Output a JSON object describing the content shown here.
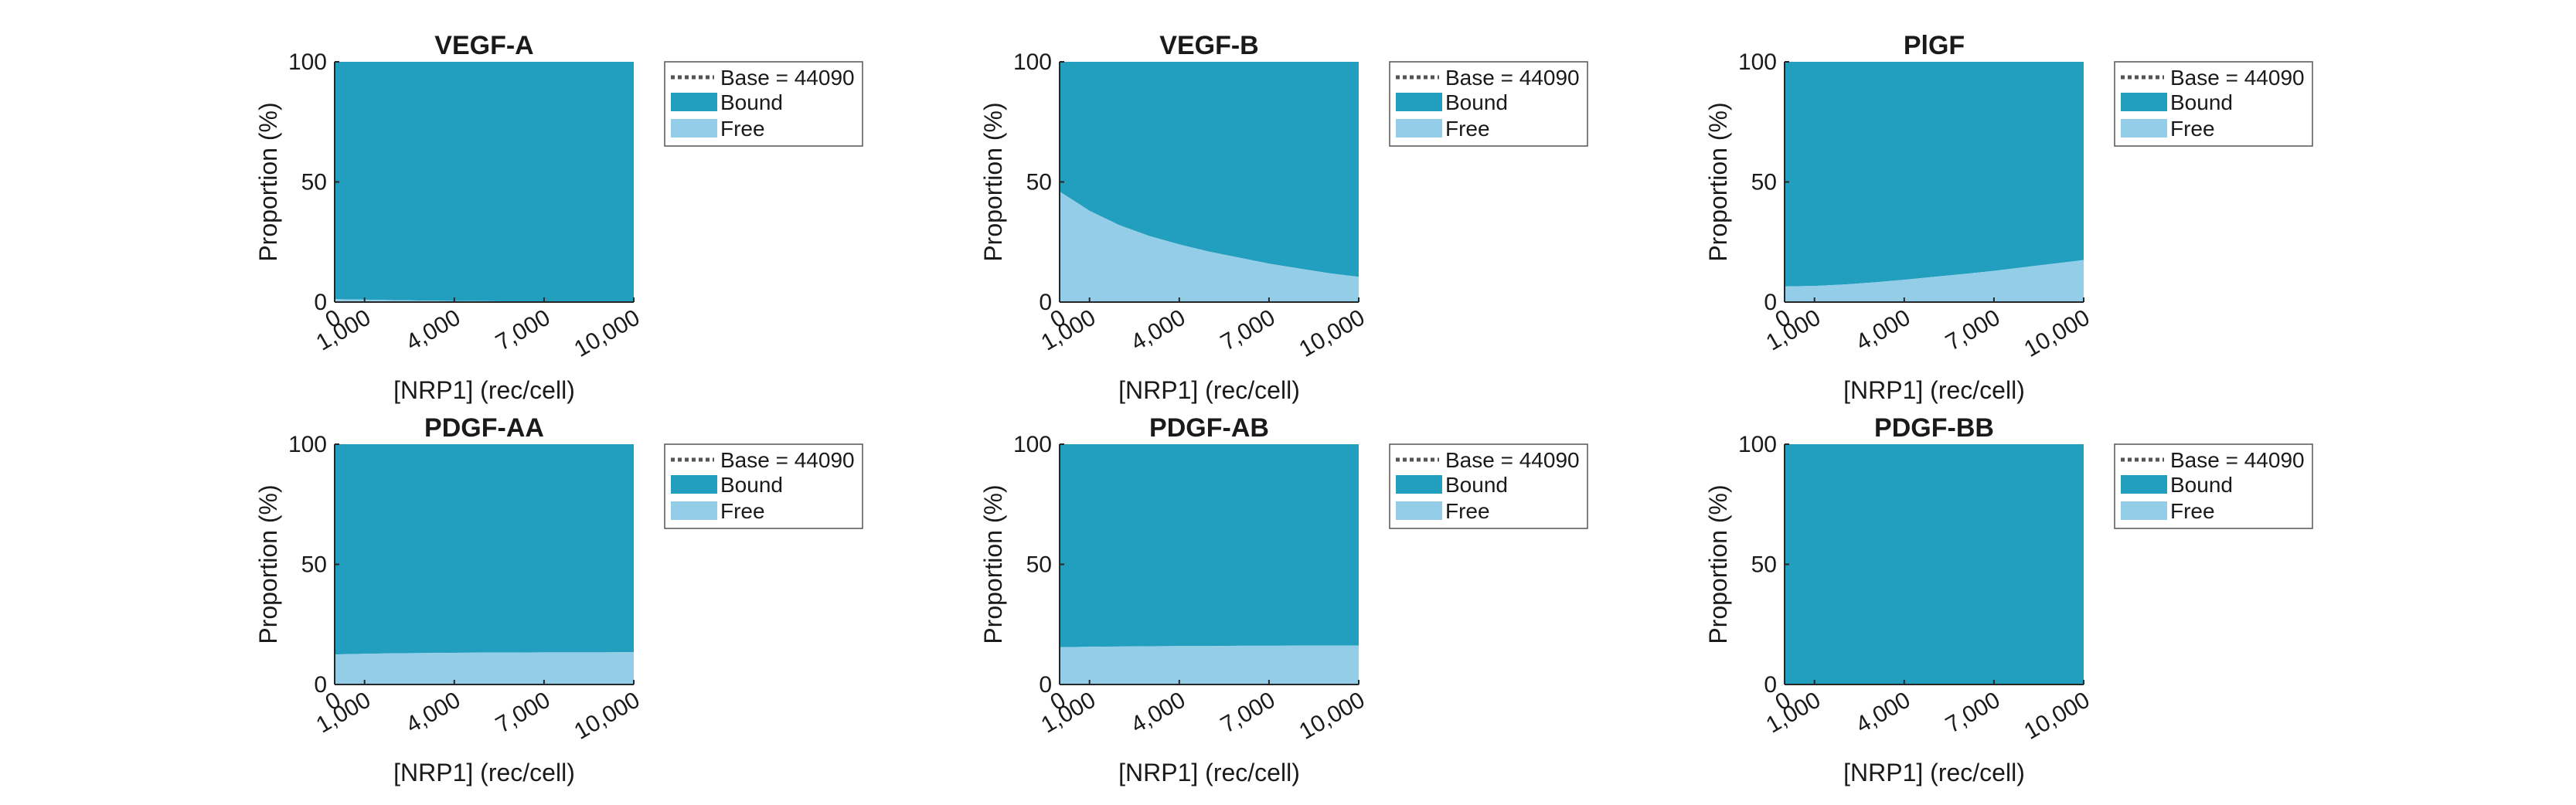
{
  "colors": {
    "bound": "#229fbf",
    "free": "#94cde7",
    "base_line": "#555555",
    "axis": "#262626"
  },
  "chart_data": [
    {
      "type": "area",
      "title": "VEGF-A",
      "xlabel": "[NRP1] (rec/cell)",
      "ylabel": "Proportion (%)",
      "x": [
        0,
        1000,
        2000,
        3000,
        4000,
        5000,
        6000,
        7000,
        8000,
        9000,
        10000
      ],
      "x_ticks": [
        0,
        1000,
        4000,
        7000,
        10000
      ],
      "x_tick_labels": [
        "0",
        "1,000",
        "4,000",
        "7,000",
        "10,000"
      ],
      "y_ticks": [
        0,
        50,
        100
      ],
      "y_tick_labels": [
        "0",
        "50",
        "100"
      ],
      "xlim": [
        0,
        10000
      ],
      "ylim": [
        0,
        100
      ],
      "series": [
        {
          "name": "Free",
          "values": [
            1.2,
            1.0,
            0.8,
            0.6,
            0.5,
            0.4,
            0.3,
            0.3,
            0.2,
            0.2,
            0.2
          ]
        },
        {
          "name": "Bound",
          "values": [
            98.8,
            99.0,
            99.2,
            99.4,
            99.5,
            99.6,
            99.7,
            99.7,
            99.8,
            99.8,
            99.8
          ]
        }
      ],
      "legend": [
        "Base = 44090",
        "Bound",
        "Free"
      ],
      "legend_position": "outside-right"
    },
    {
      "type": "area",
      "title": "VEGF-B",
      "xlabel": "[NRP1] (rec/cell)",
      "ylabel": "Proportion (%)",
      "x": [
        0,
        1000,
        2000,
        3000,
        4000,
        5000,
        6000,
        7000,
        8000,
        9000,
        10000
      ],
      "x_ticks": [
        0,
        1000,
        4000,
        7000,
        10000
      ],
      "x_tick_labels": [
        "0",
        "1,000",
        "4,000",
        "7,000",
        "10,000"
      ],
      "y_ticks": [
        0,
        50,
        100
      ],
      "y_tick_labels": [
        "0",
        "50",
        "100"
      ],
      "xlim": [
        0,
        10000
      ],
      "ylim": [
        0,
        100
      ],
      "series": [
        {
          "name": "Free",
          "values": [
            46,
            38,
            32,
            27.5,
            24,
            21,
            18.5,
            16,
            14,
            12,
            10.5
          ]
        },
        {
          "name": "Bound",
          "values": [
            54,
            62,
            68,
            72.5,
            76,
            79,
            81.5,
            84,
            86,
            88,
            89.5
          ]
        }
      ],
      "legend": [
        "Base = 44090",
        "Bound",
        "Free"
      ],
      "legend_position": "outside-right"
    },
    {
      "type": "area",
      "title": "PlGF",
      "xlabel": "[NRP1] (rec/cell)",
      "ylabel": "Proportion (%)",
      "x": [
        0,
        1000,
        2000,
        3000,
        4000,
        5000,
        6000,
        7000,
        8000,
        9000,
        10000
      ],
      "x_ticks": [
        0,
        1000,
        4000,
        7000,
        10000
      ],
      "x_tick_labels": [
        "0",
        "1,000",
        "4,000",
        "7,000",
        "10,000"
      ],
      "y_ticks": [
        0,
        50,
        100
      ],
      "y_tick_labels": [
        "0",
        "50",
        "100"
      ],
      "xlim": [
        0,
        10000
      ],
      "ylim": [
        0,
        100
      ],
      "series": [
        {
          "name": "Free",
          "values": [
            6.5,
            6.7,
            7.3,
            8.2,
            9.3,
            10.5,
            11.7,
            13.0,
            14.5,
            16.0,
            17.5
          ]
        },
        {
          "name": "Bound",
          "values": [
            93.5,
            93.3,
            92.7,
            91.8,
            90.7,
            89.5,
            88.3,
            87.0,
            85.5,
            84.0,
            82.5
          ]
        }
      ],
      "legend": [
        "Base = 44090",
        "Bound",
        "Free"
      ],
      "legend_position": "outside-right"
    },
    {
      "type": "area",
      "title": "PDGF-AA",
      "xlabel": "[NRP1] (rec/cell)",
      "ylabel": "Proportion (%)",
      "x": [
        0,
        1000,
        2000,
        3000,
        4000,
        5000,
        6000,
        7000,
        8000,
        9000,
        10000
      ],
      "x_ticks": [
        0,
        1000,
        4000,
        7000,
        10000
      ],
      "x_tick_labels": [
        "0",
        "1,000",
        "4,000",
        "7,000",
        "10,000"
      ],
      "y_ticks": [
        0,
        50,
        100
      ],
      "y_tick_labels": [
        "0",
        "50",
        "100"
      ],
      "xlim": [
        0,
        10000
      ],
      "ylim": [
        0,
        100
      ],
      "series": [
        {
          "name": "Free",
          "values": [
            12.5,
            12.8,
            13.0,
            13.1,
            13.2,
            13.3,
            13.3,
            13.4,
            13.4,
            13.4,
            13.5
          ]
        },
        {
          "name": "Bound",
          "values": [
            87.5,
            87.2,
            87.0,
            86.9,
            86.8,
            86.7,
            86.7,
            86.6,
            86.6,
            86.6,
            86.5
          ]
        }
      ],
      "legend": [
        "Base = 44090",
        "Bound",
        "Free"
      ],
      "legend_position": "outside-right"
    },
    {
      "type": "area",
      "title": "PDGF-AB",
      "xlabel": "[NRP1] (rec/cell)",
      "ylabel": "Proportion (%)",
      "x": [
        0,
        1000,
        2000,
        3000,
        4000,
        5000,
        6000,
        7000,
        8000,
        9000,
        10000
      ],
      "x_ticks": [
        0,
        1000,
        4000,
        7000,
        10000
      ],
      "x_tick_labels": [
        "0",
        "1,000",
        "4,000",
        "7,000",
        "10,000"
      ],
      "y_ticks": [
        0,
        50,
        100
      ],
      "y_tick_labels": [
        "0",
        "50",
        "100"
      ],
      "xlim": [
        0,
        10000
      ],
      "ylim": [
        0,
        100
      ],
      "series": [
        {
          "name": "Free",
          "values": [
            15.5,
            15.7,
            15.8,
            15.9,
            16.0,
            16.0,
            16.1,
            16.1,
            16.2,
            16.2,
            16.2
          ]
        },
        {
          "name": "Bound",
          "values": [
            84.5,
            84.3,
            84.2,
            84.1,
            84.0,
            84.0,
            83.9,
            83.9,
            83.8,
            83.8,
            83.8
          ]
        }
      ],
      "legend": [
        "Base = 44090",
        "Bound",
        "Free"
      ],
      "legend_position": "outside-right"
    },
    {
      "type": "area",
      "title": "PDGF-BB",
      "xlabel": "[NRP1] (rec/cell)",
      "ylabel": "Proportion (%)",
      "x": [
        0,
        1000,
        2000,
        3000,
        4000,
        5000,
        6000,
        7000,
        8000,
        9000,
        10000
      ],
      "x_ticks": [
        0,
        1000,
        4000,
        7000,
        10000
      ],
      "x_tick_labels": [
        "0",
        "1,000",
        "4,000",
        "7,000",
        "10,000"
      ],
      "y_ticks": [
        0,
        50,
        100
      ],
      "y_tick_labels": [
        "0",
        "50",
        "100"
      ],
      "xlim": [
        0,
        10000
      ],
      "ylim": [
        0,
        100
      ],
      "series": [
        {
          "name": "Free",
          "values": [
            0,
            0,
            0,
            0,
            0,
            0,
            0,
            0,
            0,
            0,
            0
          ]
        },
        {
          "name": "Bound",
          "values": [
            100,
            100,
            100,
            100,
            100,
            100,
            100,
            100,
            100,
            100,
            100
          ]
        }
      ],
      "legend": [
        "Base = 44090",
        "Bound",
        "Free"
      ],
      "legend_position": "outside-right"
    }
  ]
}
